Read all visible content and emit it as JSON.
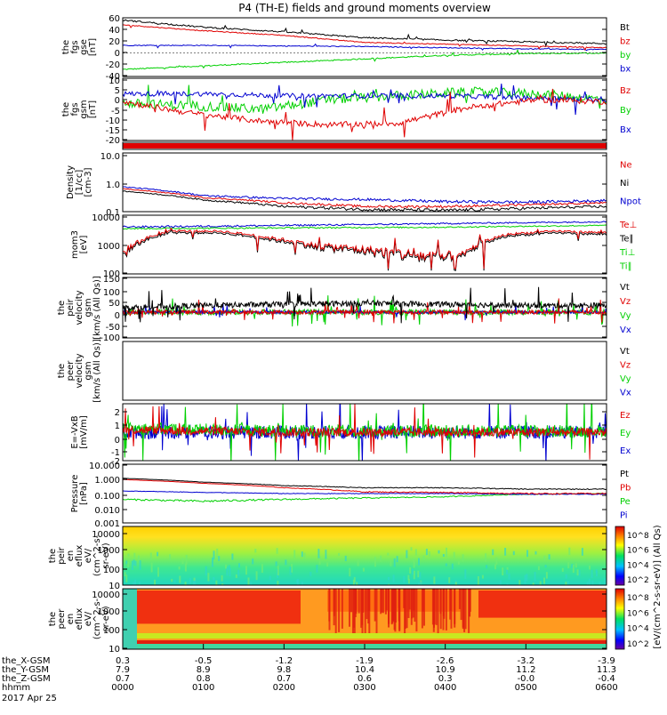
{
  "title": "P4 (TH-E) fields and ground moments overview",
  "panels": [
    {
      "id": "fgs-gse",
      "ylabel": [
        "the",
        "fgs",
        "gse",
        "[nT]"
      ],
      "ticks": [
        "60",
        "40",
        "20",
        "0",
        "-20",
        "-40"
      ],
      "legend": [
        {
          "t": "Bt",
          "c": "#000000"
        },
        {
          "t": "bz",
          "c": "#e00000"
        },
        {
          "t": "by",
          "c": "#00d000"
        },
        {
          "t": "bx",
          "c": "#0000d0"
        }
      ]
    },
    {
      "id": "fgs-gsm",
      "ylabel": [
        "the",
        "fgs",
        "gsm",
        "[nT]"
      ],
      "ticks": [
        "10",
        "5",
        "0",
        "-5",
        "-10",
        "-15",
        "-20"
      ],
      "legend": [
        {
          "t": "Bz",
          "c": "#e00000"
        },
        {
          "t": "By",
          "c": "#00d000"
        },
        {
          "t": "Bx",
          "c": "#0000d0"
        }
      ]
    },
    {
      "id": "mode-bar",
      "ylabel": [],
      "ticks": [],
      "legend": []
    },
    {
      "id": "density",
      "ylabel": [
        "Density",
        "[1/cc]",
        "[cm-3]"
      ],
      "ticks": [
        "10.0",
        "1.0",
        "0.1"
      ],
      "legend": [
        {
          "t": "Ne",
          "c": "#e00000"
        },
        {
          "t": "Ni",
          "c": "#000000"
        },
        {
          "t": "Npot",
          "c": "#0000d0"
        }
      ]
    },
    {
      "id": "temperature",
      "ylabel": [
        "mom3",
        "[eV]"
      ],
      "ticks": [
        "10000",
        "1000",
        "100"
      ],
      "legend": [
        {
          "t": "Te⊥",
          "c": "#e00000"
        },
        {
          "t": "Te∥",
          "c": "#000000"
        },
        {
          "t": "Ti⊥",
          "c": "#00d000"
        },
        {
          "t": "Ti∥",
          "c": "#00d000"
        }
      ]
    },
    {
      "id": "peir-velocity",
      "ylabel": [
        "the",
        "peir",
        "velocity",
        "gsm",
        "[km/s (All Qs)]"
      ],
      "ticks": [
        "150",
        "100",
        "50",
        "0",
        "-50",
        "-100"
      ],
      "legend": [
        {
          "t": "Vt",
          "c": "#000000"
        },
        {
          "t": "Vz",
          "c": "#e00000"
        },
        {
          "t": "Vy",
          "c": "#00d000"
        },
        {
          "t": "Vx",
          "c": "#0000d0"
        }
      ]
    },
    {
      "id": "peer-velocity",
      "ylabel": [
        "the",
        "peer",
        "velocity",
        "gsm",
        "[km/s (All Qs)]"
      ],
      "ticks": [],
      "legend": [
        {
          "t": "Vt",
          "c": "#000000"
        },
        {
          "t": "Vz",
          "c": "#e00000"
        },
        {
          "t": "Vy",
          "c": "#00d000"
        },
        {
          "t": "Vx",
          "c": "#0000d0"
        }
      ]
    },
    {
      "id": "efield",
      "ylabel": [
        "E=-VxB",
        "[mV/m]"
      ],
      "ticks": [
        "2",
        "1",
        "0",
        "-1",
        "-2"
      ],
      "legend": [
        {
          "t": "Ez",
          "c": "#e00000"
        },
        {
          "t": "Ey",
          "c": "#00d000"
        },
        {
          "t": "Ex",
          "c": "#0000d0"
        }
      ]
    },
    {
      "id": "pressure",
      "ylabel": [
        "Pressure",
        "[nPa]"
      ],
      "ticks": [
        "10.000",
        "1.000",
        "0.100",
        "0.010",
        "0.001"
      ],
      "legend": [
        {
          "t": "Pt",
          "c": "#000000"
        },
        {
          "t": "Pb",
          "c": "#e00000"
        },
        {
          "t": "Pe",
          "c": "#00d000"
        },
        {
          "t": "Pi",
          "c": "#0000d0"
        }
      ]
    },
    {
      "id": "peir-eflux",
      "ylabel": [
        "the",
        "peir",
        "en",
        "eflux",
        "eV/",
        "(cm^2-s-",
        "sr-eV)"
      ],
      "ticks": [
        "10000",
        "1000",
        "100",
        "10"
      ],
      "legend": []
    },
    {
      "id": "peer-eflux",
      "ylabel": [
        "the",
        "peer",
        "en",
        "eflux",
        "eV/",
        "(cm^2-s-",
        "sr-eV)"
      ],
      "ticks": [
        "10000",
        "1000",
        "100",
        "10"
      ],
      "legend": []
    }
  ],
  "colorbar": {
    "label": "[eV/(cm^2-s-sr-eV)] (All Qs)",
    "top_ticks": [
      "10^8",
      "10^6",
      "10^4",
      "10^2"
    ],
    "bottom_ticks": [
      "10^8",
      "10^6",
      "10^4",
      "10^2"
    ]
  },
  "x_axis": {
    "rows": [
      {
        "label": "the_X-GSM",
        "values": [
          "0.3",
          "-0.5",
          "-1.2",
          "-1.9",
          "-2.6",
          "-3.2",
          "-3.9"
        ]
      },
      {
        "label": "the_Y-GSM",
        "values": [
          "7.9",
          "8.9",
          "9.8",
          "10.4",
          "10.9",
          "11.2",
          "11.3"
        ]
      },
      {
        "label": "the_Z-GSM",
        "values": [
          "0.7",
          "0.8",
          "0.7",
          "0.6",
          "0.3",
          "-0.0",
          "-0.4"
        ]
      },
      {
        "label": "hhmm",
        "values": [
          "0000",
          "0100",
          "0200",
          "0300",
          "0400",
          "0500",
          "0600"
        ]
      }
    ],
    "date": "2017 Apr 25"
  },
  "chart_data": {
    "type": "line",
    "title": "P4 (TH-E) fields and ground moments overview",
    "x": [
      "0000",
      "0100",
      "0200",
      "0300",
      "0400",
      "0500",
      "0600"
    ],
    "xlabel": "hhmm",
    "series": [
      {
        "panel": "fgs-gse",
        "name": "Bt",
        "values": [
          55,
          42,
          34,
          24,
          22,
          18,
          15
        ]
      },
      {
        "panel": "fgs-gse",
        "name": "bz",
        "values": [
          48,
          36,
          28,
          17,
          16,
          12,
          10
        ]
      },
      {
        "panel": "fgs-gse",
        "name": "by",
        "values": [
          -28,
          -20,
          -14,
          -5,
          -2,
          0,
          0
        ]
      },
      {
        "panel": "fgs-gse",
        "name": "bx",
        "values": [
          14,
          13,
          12,
          10,
          8,
          6,
          6
        ]
      },
      {
        "panel": "fgs-gsm",
        "name": "Bz",
        "values": [
          -2,
          -8,
          -13,
          -14,
          -12,
          -4,
          -2
        ]
      },
      {
        "panel": "fgs-gsm",
        "name": "By",
        "values": [
          -3,
          -2,
          0,
          1,
          2,
          1,
          -2
        ]
      },
      {
        "panel": "fgs-gsm",
        "name": "Bx",
        "values": [
          2,
          2,
          1,
          0,
          1,
          0,
          -1
        ]
      },
      {
        "panel": "density",
        "name": "Ne",
        "values": [
          0.6,
          0.3,
          0.2,
          0.15,
          0.15,
          0.17,
          0.2
        ]
      },
      {
        "panel": "density",
        "name": "Ni",
        "values": [
          0.5,
          0.25,
          0.15,
          0.12,
          0.11,
          0.13,
          0.15
        ]
      },
      {
        "panel": "density",
        "name": "Npot",
        "values": [
          0.7,
          0.3,
          0.25,
          0.25,
          0.2,
          0.2,
          0.25
        ]
      },
      {
        "panel": "temperature",
        "name": "Ti⊥",
        "values": [
          4000,
          4200,
          4500,
          4800,
          5000,
          5500,
          6000
        ]
      },
      {
        "panel": "temperature",
        "name": "Te⊥",
        "values": [
          2500,
          2500,
          1200,
          1000,
          700,
          2000,
          2500
        ]
      },
      {
        "panel": "pressure",
        "name": "Pt",
        "values": [
          1.1,
          0.6,
          0.35,
          0.25,
          0.25,
          0.2,
          0.2
        ]
      },
      {
        "panel": "pressure",
        "name": "Pb",
        "values": [
          0.9,
          0.5,
          0.25,
          0.12,
          0.12,
          0.1,
          0.1
        ]
      },
      {
        "panel": "pressure",
        "name": "Pe",
        "values": [
          0.03,
          0.03,
          0.04,
          0.04,
          0.05,
          0.08,
          0.1
        ]
      },
      {
        "panel": "pressure",
        "name": "Pi",
        "values": [
          0.15,
          0.12,
          0.1,
          0.1,
          0.1,
          0.09,
          0.09
        ]
      }
    ]
  }
}
